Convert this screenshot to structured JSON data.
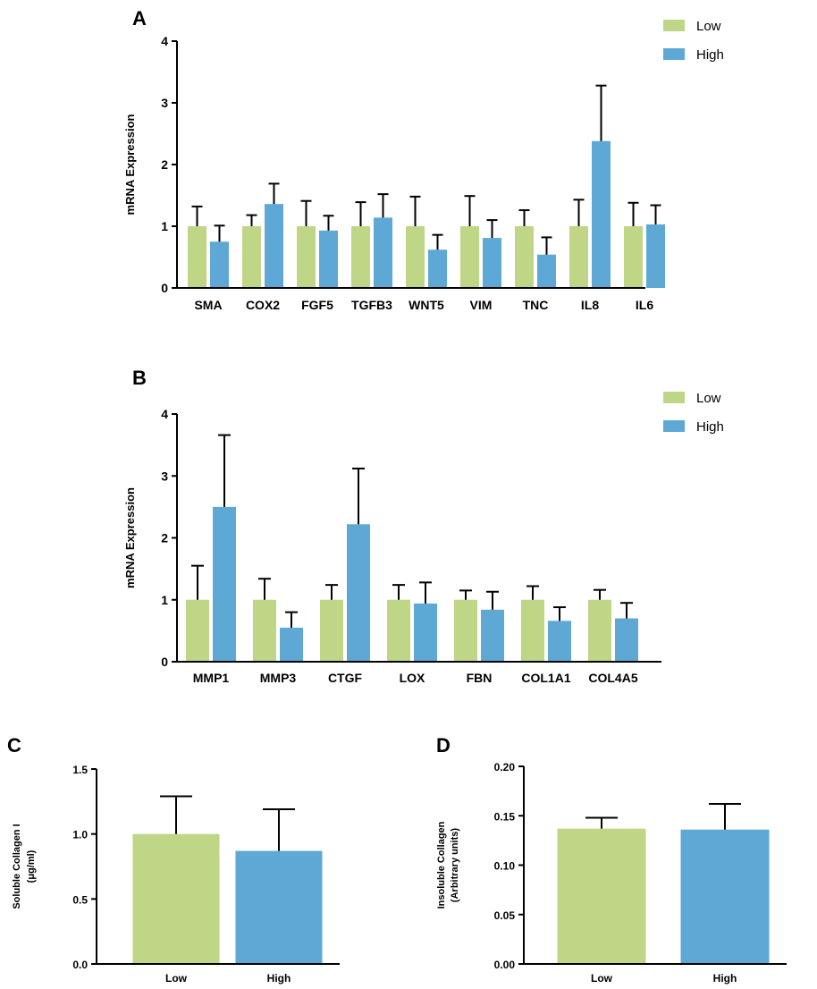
{
  "colors": {
    "low": "#bfd686",
    "high": "#5ea8d6"
  },
  "chart_data": [
    {
      "panel": "A",
      "type": "bar",
      "ylabel": "mRNA Expression",
      "ylim": [
        0,
        4
      ],
      "yticks": [
        "0",
        "1",
        "2",
        "3",
        "4"
      ],
      "categories": [
        "SMA",
        "COX2",
        "FGF5",
        "TGFB3",
        "WNT5",
        "VIM",
        "TNC",
        "IL8",
        "IL6"
      ],
      "series": [
        {
          "name": "Low",
          "color": "#bfd686",
          "values": [
            1,
            1,
            1,
            1,
            1,
            1,
            1,
            1,
            1
          ],
          "error": [
            0.32,
            0.18,
            0.41,
            0.39,
            0.48,
            0.49,
            0.26,
            0.43,
            0.38
          ]
        },
        {
          "name": "High",
          "color": "#5ea8d6",
          "values": [
            0.75,
            1.36,
            0.93,
            1.14,
            0.62,
            0.81,
            0.54,
            2.38,
            1.03
          ],
          "error": [
            0.26,
            0.33,
            0.24,
            0.38,
            0.24,
            0.29,
            0.28,
            0.9,
            0.31
          ]
        }
      ],
      "legend": [
        "Low",
        "High"
      ],
      "legend_position": "top-right"
    },
    {
      "panel": "B",
      "type": "bar",
      "ylabel": "mRNA Expression",
      "ylim": [
        0,
        4
      ],
      "yticks": [
        "0",
        "1",
        "2",
        "3",
        "4"
      ],
      "categories": [
        "MMP1",
        "MMP3",
        "CTGF",
        "LOX",
        "FBN",
        "COL1A1",
        "COL4A5"
      ],
      "series": [
        {
          "name": "Low",
          "color": "#bfd686",
          "values": [
            1,
            1,
            1,
            1,
            1,
            1,
            1
          ],
          "error": [
            0.55,
            0.34,
            0.24,
            0.24,
            0.15,
            0.22,
            0.16
          ]
        },
        {
          "name": "High",
          "color": "#5ea8d6",
          "values": [
            2.5,
            0.55,
            2.22,
            0.94,
            0.84,
            0.66,
            0.7
          ],
          "error": [
            1.16,
            0.25,
            0.9,
            0.34,
            0.29,
            0.22,
            0.25
          ]
        }
      ],
      "legend": [
        "Low",
        "High"
      ],
      "legend_position": "top-right"
    },
    {
      "panel": "C",
      "type": "bar",
      "ylabel": "Soluble Collagen I",
      "ylabel2": "(μg/ml)",
      "ylim": [
        0,
        1.5
      ],
      "yticks": [
        "0.0",
        "0.5",
        "1.0",
        "1.5"
      ],
      "categories": [
        "Low",
        "High"
      ],
      "values": [
        1.0,
        0.87
      ],
      "error": [
        0.29,
        0.32
      ],
      "colors": [
        "#bfd686",
        "#5ea8d6"
      ]
    },
    {
      "panel": "D",
      "type": "bar",
      "ylabel": "Insoluble Collagen",
      "ylabel2": "(Arbitrary units)",
      "ylim": [
        0,
        0.2
      ],
      "yticks": [
        "0.00",
        "0.05",
        "0.10",
        "0.15",
        "0.20"
      ],
      "categories": [
        "Low",
        "High"
      ],
      "values": [
        0.137,
        0.136
      ],
      "error": [
        0.011,
        0.026
      ],
      "colors": [
        "#bfd686",
        "#5ea8d6"
      ]
    }
  ]
}
